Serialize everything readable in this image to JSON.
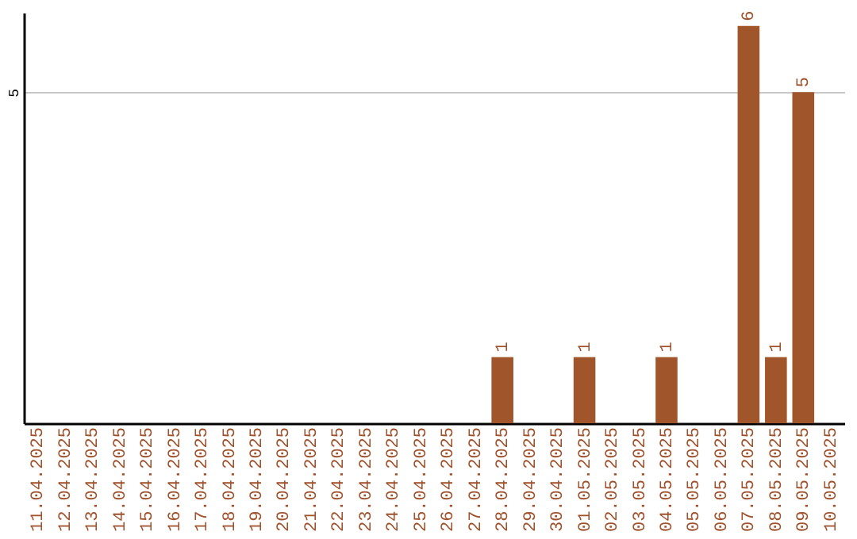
{
  "chart_data": {
    "type": "bar",
    "categories": [
      "11.04.2025",
      "12.04.2025",
      "13.04.2025",
      "14.04.2025",
      "15.04.2025",
      "16.04.2025",
      "17.04.2025",
      "18.04.2025",
      "19.04.2025",
      "20.04.2025",
      "21.04.2025",
      "22.04.2025",
      "23.04.2025",
      "24.04.2025",
      "25.04.2025",
      "26.04.2025",
      "27.04.2025",
      "28.04.2025",
      "29.04.2025",
      "30.04.2025",
      "01.05.2025",
      "02.05.2025",
      "03.05.2025",
      "04.05.2025",
      "05.05.2025",
      "06.05.2025",
      "07.05.2025",
      "08.05.2025",
      "09.05.2025",
      "10.05.2025"
    ],
    "values": [
      null,
      null,
      null,
      null,
      null,
      null,
      null,
      null,
      null,
      null,
      null,
      null,
      null,
      null,
      null,
      null,
      null,
      1,
      null,
      null,
      1,
      null,
      null,
      1,
      null,
      null,
      6,
      1,
      5,
      null
    ],
    "color": "#a0562a",
    "ylim": [
      0,
      6.2
    ],
    "yticks": [
      5
    ],
    "grid": "y",
    "data_labels": true
  }
}
